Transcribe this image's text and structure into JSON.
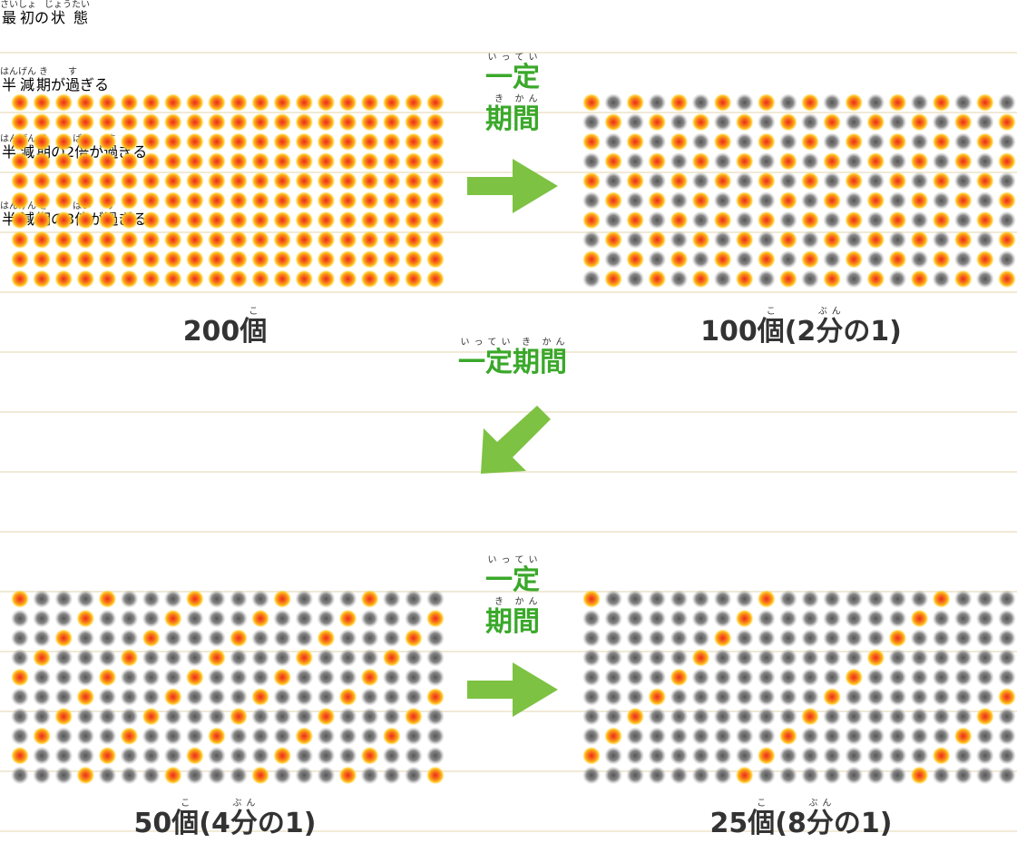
{
  "panels": [
    {
      "title": [
        [
          "最",
          "さい"
        ],
        [
          "初",
          "しょ"
        ],
        [
          "の"
        ],
        [
          "状",
          "じょう"
        ],
        [
          "態",
          "たい"
        ]
      ],
      "count": [
        [
          "200"
        ],
        [
          "個",
          "こ"
        ]
      ]
    },
    {
      "title": [
        [
          "半",
          "はん"
        ],
        [
          "減",
          "げん"
        ],
        [
          "期",
          "き"
        ],
        [
          "が"
        ],
        [
          "過",
          "す"
        ],
        [
          "ぎる"
        ]
      ],
      "count": [
        [
          "100"
        ],
        [
          "個",
          "こ"
        ],
        [
          "(2"
        ],
        [
          "分",
          "ぶん"
        ],
        [
          "の1)"
        ]
      ]
    },
    {
      "title": [
        [
          "半",
          "はん"
        ],
        [
          "減",
          "げん"
        ],
        [
          "期",
          "き"
        ],
        [
          "の2"
        ],
        [
          "倍",
          "ばい"
        ],
        [
          "が"
        ],
        [
          "過",
          "す"
        ],
        [
          "ぎる"
        ]
      ],
      "count": [
        [
          "50"
        ],
        [
          "個",
          "こ"
        ],
        [
          "(4"
        ],
        [
          "分",
          "ぶん"
        ],
        [
          "の1)"
        ]
      ]
    },
    {
      "title": [
        [
          "半",
          "はん"
        ],
        [
          "減",
          "げん"
        ],
        [
          "期",
          "き"
        ],
        [
          "の3"
        ],
        [
          "倍",
          "ばい"
        ],
        [
          "が"
        ],
        [
          "過",
          "す"
        ],
        [
          "ぎる"
        ]
      ],
      "count": [
        [
          "25"
        ],
        [
          "個",
          "こ"
        ],
        [
          "(8"
        ],
        [
          "分",
          "ぶん"
        ],
        [
          "の1)"
        ]
      ]
    }
  ],
  "arrow_labels": [
    [
      [
        [
          "一",
          "いっ"
        ],
        [
          "定",
          "てい"
        ]
      ],
      [
        [
          "期",
          "き"
        ],
        [
          "間",
          "かん"
        ]
      ]
    ],
    [
      [
        [
          "一",
          "いっ"
        ],
        [
          "定",
          "てい"
        ],
        [
          "期",
          "き"
        ],
        [
          "間",
          "かん"
        ]
      ]
    ],
    [
      [
        [
          "一",
          "いっ"
        ],
        [
          "定",
          "てい"
        ]
      ],
      [
        [
          "期",
          "き"
        ],
        [
          "間",
          "かん"
        ]
      ]
    ]
  ]
}
